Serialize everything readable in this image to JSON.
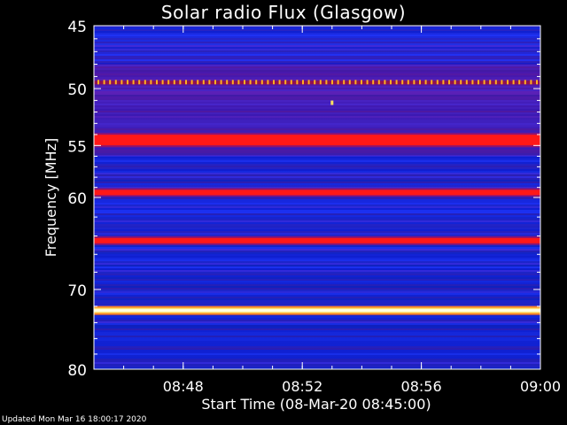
{
  "chart_data": {
    "type": "heatmap",
    "title": "Solar radio Flux (Glasgow)",
    "ylabel": "Frequency [MHz]",
    "xlabel": "Start Time (08-Mar-20 08:45:00)",
    "y_axis": {
      "scale": "log",
      "min": 45,
      "max": 80,
      "direction": "increasing-downward",
      "tick_labels": [
        "45",
        "50",
        "55",
        "60",
        "70",
        "80"
      ],
      "tick_values": [
        45,
        50,
        55,
        60,
        70,
        80
      ]
    },
    "x_axis": {
      "min": "08:45",
      "max": "09:00",
      "tick_labels": [
        "08:48",
        "08:52",
        "08:56",
        "09:00"
      ],
      "tick_values": [
        "08:48",
        "08:52",
        "08:56",
        "09:00"
      ]
    },
    "colormap": [
      "#00008c",
      "#1e2cff",
      "#4a20c0",
      "#a01070",
      "#ff1010",
      "#ffd040",
      "#ffffd0"
    ],
    "background_intensity": "low",
    "bands": [
      {
        "freq_mhz": 49.5,
        "intensity": "spiky-bright",
        "pattern": "periodic dashes"
      },
      {
        "freq_mhz": 54.5,
        "intensity": "high"
      },
      {
        "freq_mhz": 59.5,
        "intensity": "high"
      },
      {
        "freq_mhz": 64.5,
        "intensity": "high"
      },
      {
        "freq_mhz": 72.5,
        "intensity": "very-high"
      }
    ],
    "spot": {
      "time": "08:53",
      "freq_mhz": 51.2,
      "intensity": "bright"
    }
  },
  "footer": {
    "updated": "Updated Mon Mar 16 18:00:17 2020"
  }
}
